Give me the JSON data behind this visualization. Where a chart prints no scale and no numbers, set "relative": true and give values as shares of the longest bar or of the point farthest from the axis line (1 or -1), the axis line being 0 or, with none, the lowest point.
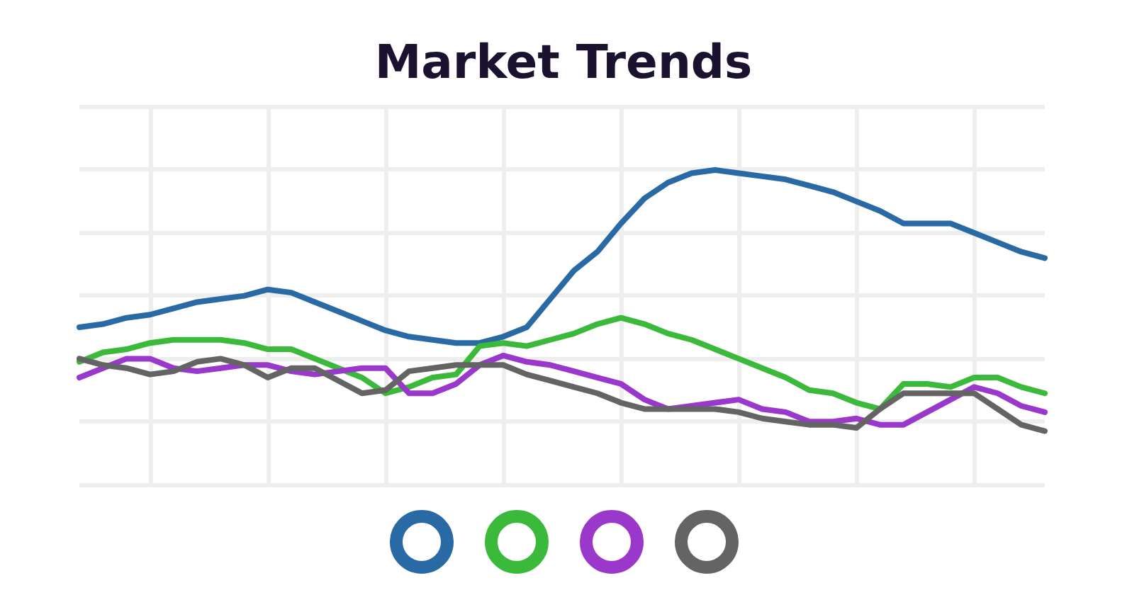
{
  "chart_data": {
    "type": "line",
    "title": "Market Trends",
    "relative": true,
    "grid": true,
    "marker": "none",
    "line_style": "solid",
    "categories": [
      null,
      null,
      null,
      null,
      null,
      null,
      null,
      null,
      null,
      null,
      null,
      null,
      null,
      null,
      null,
      null,
      null,
      null,
      null,
      null,
      null,
      null,
      null,
      null,
      null,
      null,
      null,
      null,
      null,
      null,
      null,
      null,
      null,
      null,
      null,
      null,
      null,
      null,
      null,
      null,
      null,
      null
    ],
    "series": [
      {
        "color": "#2a6aa4",
        "values": [
          0.5,
          0.51,
          0.53,
          0.54,
          0.56,
          0.58,
          0.59,
          0.6,
          0.62,
          0.61,
          0.58,
          0.55,
          0.52,
          0.49,
          0.47,
          0.46,
          0.45,
          0.45,
          0.47,
          0.5,
          0.59,
          0.68,
          0.74,
          0.83,
          0.91,
          0.96,
          0.99,
          1.0,
          0.99,
          0.98,
          0.97,
          0.95,
          0.93,
          0.9,
          0.87,
          0.83,
          0.83,
          0.83,
          0.8,
          0.77,
          0.74,
          0.72
        ]
      },
      {
        "color": "#3bb93b",
        "values": [
          0.39,
          0.42,
          0.43,
          0.45,
          0.46,
          0.46,
          0.46,
          0.45,
          0.43,
          0.43,
          0.4,
          0.37,
          0.34,
          0.29,
          0.31,
          0.34,
          0.35,
          0.44,
          0.45,
          0.44,
          0.46,
          0.48,
          0.51,
          0.53,
          0.51,
          0.48,
          0.46,
          0.43,
          0.4,
          0.37,
          0.34,
          0.3,
          0.29,
          0.26,
          0.24,
          0.32,
          0.32,
          0.31,
          0.34,
          0.34,
          0.31,
          0.29
        ]
      },
      {
        "color": "#9a38cc",
        "values": [
          0.34,
          0.37,
          0.4,
          0.4,
          0.37,
          0.36,
          0.37,
          0.38,
          0.38,
          0.36,
          0.35,
          0.36,
          0.37,
          0.37,
          0.29,
          0.29,
          0.32,
          0.38,
          0.41,
          0.39,
          0.38,
          0.36,
          0.34,
          0.32,
          0.27,
          0.24,
          0.25,
          0.26,
          0.27,
          0.24,
          0.23,
          0.2,
          0.2,
          0.21,
          0.19,
          0.19,
          0.23,
          0.27,
          0.31,
          0.29,
          0.25,
          0.23
        ]
      },
      {
        "color": "#646464",
        "values": [
          0.4,
          0.38,
          0.37,
          0.35,
          0.36,
          0.39,
          0.4,
          0.38,
          0.34,
          0.37,
          0.37,
          0.33,
          0.29,
          0.3,
          0.36,
          0.37,
          0.38,
          0.38,
          0.38,
          0.35,
          0.33,
          0.31,
          0.29,
          0.26,
          0.24,
          0.24,
          0.24,
          0.24,
          0.23,
          0.21,
          0.2,
          0.19,
          0.19,
          0.18,
          0.24,
          0.29,
          0.29,
          0.29,
          0.29,
          0.24,
          0.19,
          0.17
        ]
      }
    ]
  }
}
